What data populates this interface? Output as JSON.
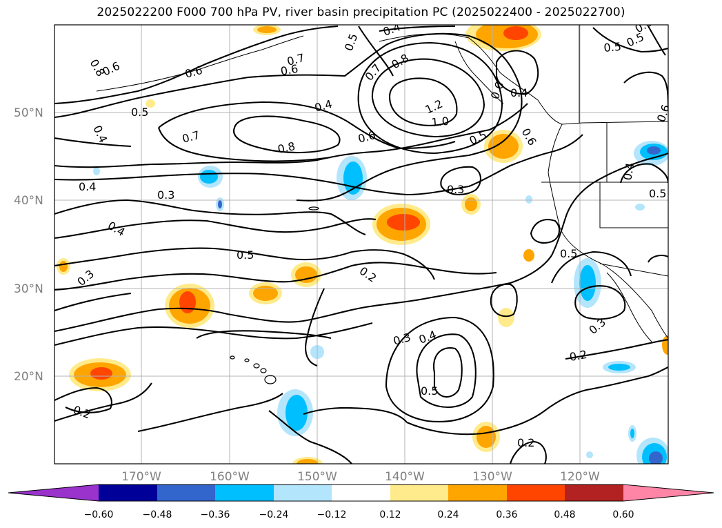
{
  "title": "2025022200 F000 700 hPa PV, river basin precipitation PC (2025022400 - 2025022700)",
  "lat_ticks": [
    "20°N",
    "30°N",
    "40°N",
    "50°N"
  ],
  "lon_ticks": [
    "170°W",
    "160°W",
    "150°W",
    "140°W",
    "130°W",
    "120°W"
  ],
  "colorbar": {
    "ticks": [
      "−0.60",
      "−0.48",
      "−0.36",
      "−0.24",
      "−0.12",
      "0.12",
      "0.24",
      "0.36",
      "0.48",
      "0.60"
    ],
    "colors": [
      "#9933cc",
      "#000099",
      "#3366cc",
      "#00bfff",
      "#b3e5fc",
      "#ffffff",
      "#ffeb8c",
      "#ffa500",
      "#ff4500",
      "#b22222",
      "#ff85a7"
    ]
  },
  "contour_labels": [
    {
      "text": "0.6"
    },
    {
      "text": "0.8"
    },
    {
      "text": "0.6"
    },
    {
      "text": "0.5"
    },
    {
      "text": "0.4"
    },
    {
      "text": "0.7"
    },
    {
      "text": "0.8"
    },
    {
      "text": "0.6"
    },
    {
      "text": "0.7"
    },
    {
      "text": "0.4"
    },
    {
      "text": "0.4"
    },
    {
      "text": "0.3"
    },
    {
      "text": "0.4"
    },
    {
      "text": "0.5"
    },
    {
      "text": "0.3"
    },
    {
      "text": "0.5"
    },
    {
      "text": "0.7"
    },
    {
      "text": "0.8"
    },
    {
      "text": "0.6"
    },
    {
      "text": "0.5"
    },
    {
      "text": "1.2"
    },
    {
      "text": "1.0"
    },
    {
      "text": "0.3"
    },
    {
      "text": "0.2"
    },
    {
      "text": "0.4"
    },
    {
      "text": "0.6"
    },
    {
      "text": "0.4"
    },
    {
      "text": "0.6"
    },
    {
      "text": "0.5"
    },
    {
      "text": "0.6"
    },
    {
      "text": "0.6"
    },
    {
      "text": "0.5"
    },
    {
      "text": "0.5"
    },
    {
      "text": "0.4"
    },
    {
      "text": "0.3"
    },
    {
      "text": "0.4"
    },
    {
      "text": "0.5"
    },
    {
      "text": "0.2"
    },
    {
      "text": "0.2"
    },
    {
      "text": "0.3"
    },
    {
      "text": "0.5"
    },
    {
      "text": "0.2"
    }
  ]
}
